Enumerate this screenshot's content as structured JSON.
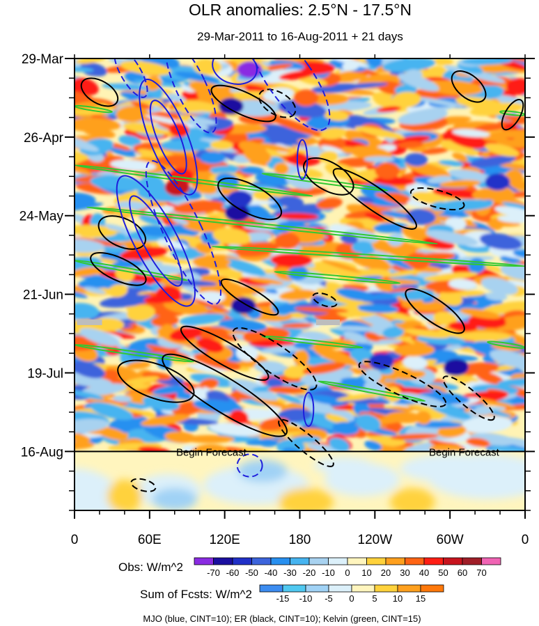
{
  "chart_data": {
    "type": "heatmap",
    "title": "OLR anomalies: 2.5°N - 17.5°N",
    "subtitle": "29-Mar-2011 to 16-Aug-2011 + 21 days",
    "x_ticks": [
      "0",
      "60E",
      "120E",
      "180",
      "120W",
      "60W",
      "0"
    ],
    "x_tick_lon": [
      0,
      60,
      120,
      180,
      240,
      300,
      360
    ],
    "y_ticks": [
      "29-Mar",
      "26-Apr",
      "24-May",
      "21-Jun",
      "19-Jul",
      "16-Aug"
    ],
    "y_tick_day": [
      0,
      28,
      56,
      84,
      112,
      140
    ],
    "x_range_lon": [
      0,
      360
    ],
    "y_range_days": [
      0,
      161
    ],
    "forecast_start_day": 140,
    "forecast_label": "Begin Forecast",
    "obs_colorbar": {
      "label": "Obs: W/m^2",
      "levels": [
        "-70",
        "-60",
        "-50",
        "-40",
        "-30",
        "-20",
        "-10",
        "0",
        "10",
        "20",
        "30",
        "40",
        "50",
        "60",
        "70"
      ],
      "colors": [
        "#8a2be2",
        "#1a0fa0",
        "#2030c8",
        "#3c64dc",
        "#2890f0",
        "#46b4f0",
        "#a8d2f0",
        "#dcf0fa",
        "#fff5be",
        "#ffd23c",
        "#ffa01e",
        "#ff6414",
        "#ff1e14",
        "#c8141e",
        "#a01e28",
        "#f064b4"
      ]
    },
    "fcst_colorbar": {
      "label": "Sum of Fcsts: W/m^2",
      "levels": [
        "-15",
        "-10",
        "-5",
        "0",
        "5",
        "10",
        "15"
      ],
      "colors": [
        "#3c8cf0",
        "#50c8f0",
        "#a0d2f5",
        "#dcf0fa",
        "#fff5be",
        "#ffd23c",
        "#ffa01e",
        "#ff780a"
      ]
    },
    "footer": "MJO (blue, CINT=10); ER (black, CINT=10); Kelvin (green, CINT=15)",
    "series": [
      {
        "name": "MJO",
        "color": "#1e1edc",
        "cint": 10
      },
      {
        "name": "ER",
        "color": "#000000",
        "cint": 10
      },
      {
        "name": "Kelvin",
        "color": "#32c832",
        "cint": 15
      }
    ],
    "mjo_contours": [
      {
        "lon": 75,
        "day": 28,
        "dlon": 9,
        "dday": 14,
        "tilt": -22,
        "dashed": false
      },
      {
        "lon": 75,
        "day": 28,
        "dlon": 15,
        "dday": 22,
        "tilt": -22,
        "dashed": false
      },
      {
        "lon": 65,
        "day": 65,
        "dlon": 10,
        "dday": 18,
        "tilt": -28,
        "dashed": false
      },
      {
        "lon": 65,
        "day": 65,
        "dlon": 17,
        "dday": 26,
        "tilt": -28,
        "dashed": false
      },
      {
        "lon": 87,
        "day": 62,
        "dlon": 15,
        "dday": 28,
        "tilt": -25,
        "dashed": true
      },
      {
        "lon": 93,
        "day": 10,
        "dlon": 12,
        "dday": 18,
        "tilt": -25,
        "dashed": true
      },
      {
        "lon": 128,
        "day": 3,
        "dlon": 18,
        "dday": 6,
        "tilt": 15,
        "dashed": false
      },
      {
        "lon": 172,
        "day": 7,
        "dlon": 18,
        "dday": 22,
        "tilt": -35,
        "dashed": true
      },
      {
        "lon": 182,
        "day": 36,
        "dlon": 4,
        "dday": 7,
        "tilt": 0,
        "dashed": false
      },
      {
        "lon": 187,
        "day": 125,
        "dlon": 4,
        "dday": 6,
        "tilt": 0,
        "dashed": false
      },
      {
        "lon": 140,
        "day": 145,
        "dlon": 10,
        "dday": 4,
        "tilt": 0,
        "dashed": true
      },
      {
        "lon": 45,
        "day": 5,
        "dlon": 8,
        "dday": 10,
        "tilt": -30,
        "dashed": true
      }
    ],
    "er_contours": [
      {
        "lon": 20,
        "day": 12,
        "dlon": 16,
        "dday": 4,
        "tilt": 30,
        "dashed": false
      },
      {
        "lon": 38,
        "day": 62,
        "dlon": 20,
        "dday": 5,
        "tilt": 25,
        "dashed": false
      },
      {
        "lon": 35,
        "day": 75,
        "dlon": 24,
        "dday": 4,
        "tilt": 25,
        "dashed": false
      },
      {
        "lon": 135,
        "day": 16,
        "dlon": 28,
        "dday": 4,
        "tilt": 25,
        "dashed": false
      },
      {
        "lon": 140,
        "day": 50,
        "dlon": 28,
        "dday": 5,
        "tilt": 28,
        "dashed": false
      },
      {
        "lon": 203,
        "day": 42,
        "dlon": 22,
        "dday": 5,
        "tilt": 30,
        "dashed": false
      },
      {
        "lon": 240,
        "day": 50,
        "dlon": 40,
        "dday": 4,
        "tilt": 35,
        "dashed": false
      },
      {
        "lon": 315,
        "day": 10,
        "dlon": 16,
        "dday": 4,
        "tilt": 40,
        "dashed": false
      },
      {
        "lon": 288,
        "day": 90,
        "dlon": 28,
        "dday": 4,
        "tilt": 35,
        "dashed": false
      },
      {
        "lon": 65,
        "day": 115,
        "dlon": 32,
        "dday": 6,
        "tilt": 20,
        "dashed": false
      },
      {
        "lon": 120,
        "day": 105,
        "dlon": 40,
        "dday": 4,
        "tilt": 30,
        "dashed": false
      },
      {
        "lon": 120,
        "day": 120,
        "dlon": 58,
        "dday": 6,
        "tilt": 32,
        "dashed": false
      },
      {
        "lon": 160,
        "day": 107,
        "dlon": 40,
        "dday": 5,
        "tilt": 35,
        "dashed": true
      },
      {
        "lon": 262,
        "day": 116,
        "dlon": 38,
        "dday": 4,
        "tilt": 25,
        "dashed": true
      },
      {
        "lon": 315,
        "day": 121,
        "dlon": 26,
        "dday": 3,
        "tilt": 40,
        "dashed": true
      },
      {
        "lon": 55,
        "day": 152,
        "dlon": 10,
        "dday": 2,
        "tilt": 15,
        "dashed": true
      },
      {
        "lon": 185,
        "day": 137,
        "dlon": 28,
        "dday": 3,
        "tilt": 40,
        "dashed": true
      },
      {
        "lon": 350,
        "day": 20,
        "dlon": 6,
        "dday": 6,
        "tilt": 30,
        "dashed": false
      },
      {
        "lon": 162,
        "day": 16,
        "dlon": 16,
        "dday": 4,
        "tilt": 30,
        "dashed": true
      },
      {
        "lon": 290,
        "day": 50,
        "dlon": 22,
        "dday": 3,
        "tilt": 15,
        "dashed": true
      },
      {
        "lon": 200,
        "day": 86,
        "dlon": 10,
        "dday": 2,
        "tilt": 20,
        "dashed": true
      },
      {
        "lon": 140,
        "day": 85,
        "dlon": 26,
        "dday": 3,
        "tilt": 30,
        "dashed": false
      }
    ],
    "kelvin_bands": [
      {
        "lon1": 0,
        "day1": 38,
        "lon2": 190,
        "day2": 49
      },
      {
        "lon1": 150,
        "day1": 41,
        "lon2": 250,
        "day2": 47
      },
      {
        "lon1": 10,
        "day1": 53,
        "lon2": 290,
        "day2": 66
      },
      {
        "lon1": 0,
        "day1": 72,
        "lon2": 90,
        "day2": 79
      },
      {
        "lon1": 110,
        "day1": 67,
        "lon2": 360,
        "day2": 74
      },
      {
        "lon1": 160,
        "day1": 76,
        "lon2": 260,
        "day2": 80
      },
      {
        "lon1": 150,
        "day1": 99,
        "lon2": 230,
        "day2": 103
      },
      {
        "lon1": 0,
        "day1": 102,
        "lon2": 95,
        "day2": 108
      },
      {
        "lon1": 195,
        "day1": 115,
        "lon2": 280,
        "day2": 122
      },
      {
        "lon1": 330,
        "day1": 101,
        "lon2": 360,
        "day2": 103
      },
      {
        "lon1": 0,
        "day1": 17,
        "lon2": 30,
        "day2": 19
      },
      {
        "lon1": 340,
        "day1": 19,
        "lon2": 360,
        "day2": 20
      }
    ],
    "missing_bars": [
      {
        "lon1": 2,
        "lon2": 22,
        "day": 94
      },
      {
        "lon1": 193,
        "lon2": 212,
        "day": 94
      }
    ]
  }
}
